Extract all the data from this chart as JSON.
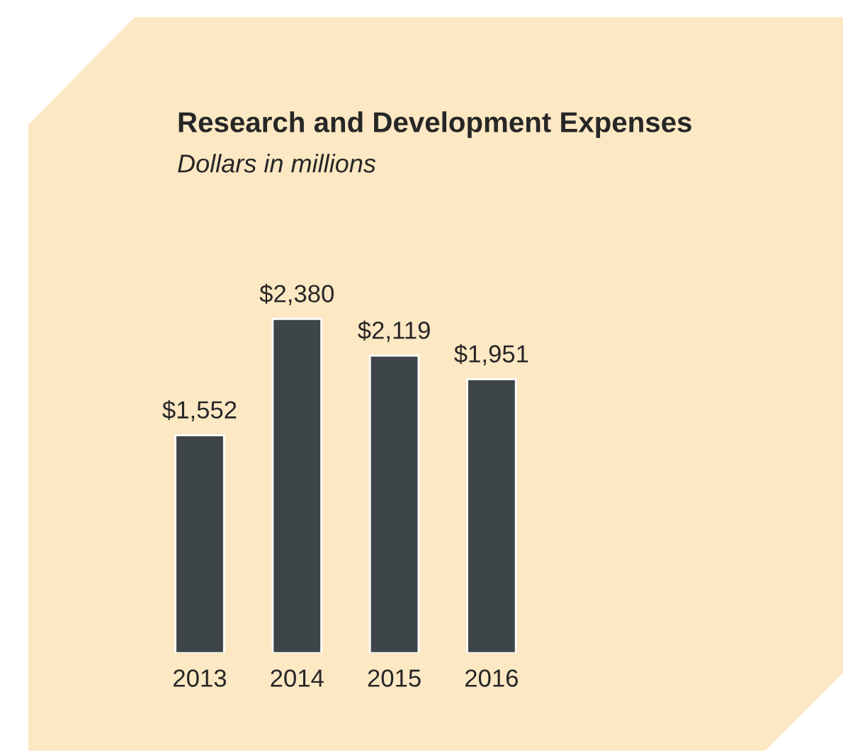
{
  "chart_data": {
    "type": "bar",
    "title": "Research and Development Expenses",
    "subtitle": "Dollars in millions",
    "categories": [
      "2013",
      "2014",
      "2015",
      "2016"
    ],
    "values": [
      1552,
      2380,
      2119,
      1951
    ],
    "value_labels": [
      "$1,552",
      "$2,380",
      "$2,119",
      "$1,951"
    ],
    "color": "#3d4548",
    "grid": false,
    "legend": false
  }
}
